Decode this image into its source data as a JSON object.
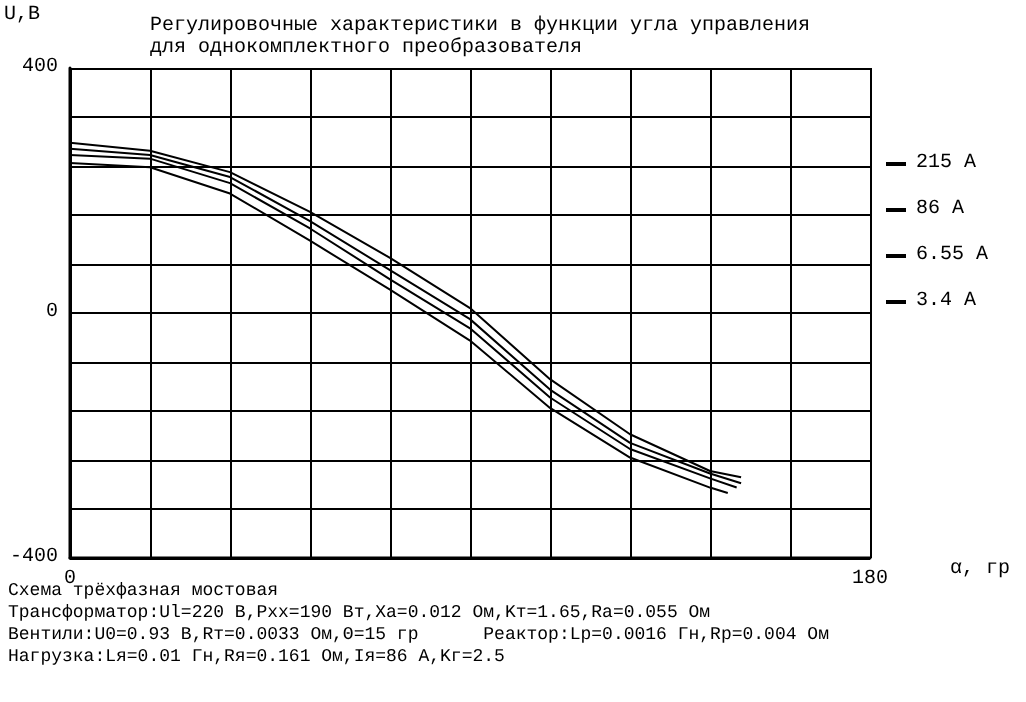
{
  "chart_data": {
    "type": "line",
    "title": "Регулировочные характеристики в функции угла управления\nдля однокомплектного преобразователя",
    "xlabel": "α, гр",
    "ylabel": "U,В",
    "xlim": [
      0,
      180
    ],
    "ylim": [
      -400,
      400
    ],
    "xticks": [
      0,
      {
        "value": 18,
        "label": null
      },
      {
        "value": 36,
        "label": null
      },
      {
        "value": 54,
        "label": null
      },
      {
        "value": 72,
        "label": null
      },
      {
        "value": 90,
        "label": null
      },
      {
        "value": 108,
        "label": null
      },
      {
        "value": 126,
        "label": null
      },
      {
        "value": 144,
        "label": null
      },
      {
        "value": 162,
        "label": null
      },
      180
    ],
    "yticks": [
      -400,
      {
        "value": -320,
        "label": null
      },
      {
        "value": -240,
        "label": null
      },
      {
        "value": -160,
        "label": null
      },
      {
        "value": -80,
        "label": null
      },
      0,
      {
        "value": 80,
        "label": null
      },
      {
        "value": 160,
        "label": null
      },
      {
        "value": 240,
        "label": null
      },
      {
        "value": 320,
        "label": null
      },
      400
    ],
    "grid": true,
    "legend": "right",
    "marker": "none",
    "line_style": "solid",
    "series": [
      {
        "name": "215 А",
        "color": "#000000",
        "x": [
          0,
          18,
          36,
          54,
          72,
          90,
          108,
          126,
          144,
          148
        ],
        "values": [
          245,
          238,
          195,
          118,
          38,
          -45,
          -155,
          -236,
          -285,
          -294
        ]
      },
      {
        "name": "86 А",
        "color": "#000000",
        "x": [
          0,
          18,
          36,
          54,
          72,
          90,
          108,
          126,
          144,
          150
        ],
        "values": [
          258,
          252,
          212,
          138,
          55,
          -25,
          -138,
          -222,
          -270,
          -285
        ]
      },
      {
        "name": "6.55 А",
        "color": "#000000",
        "x": [
          0,
          18,
          36,
          54,
          72,
          90,
          108,
          126,
          144,
          151
        ],
        "values": [
          268,
          258,
          222,
          150,
          70,
          -10,
          -125,
          -212,
          -262,
          -278
        ]
      },
      {
        "name": "3.4 А",
        "color": "#000000",
        "x": [
          0,
          18,
          36,
          54,
          72,
          90,
          108,
          126,
          144,
          151
        ],
        "values": [
          278,
          265,
          230,
          165,
          90,
          8,
          -108,
          -198,
          -258,
          -268
        ]
      }
    ],
    "annotations": [
      "Схема трёхфазная мостовая",
      "Трансформатор:Ul=220 В,Pxx=190 Вт,Xa=0.012 Ом,Kт=1.65,Ra=0.055 Ом",
      "Вентили:U0=0.93 В,Rт=0.0033 Ом,Θ=15 гр      Реактор:Lp=0.0016 Гн,Rp=0.004 Ом",
      "Нагрузка:Lя=0.01 Гн,Rя=0.161 Ом,Iя=86 А,Kг=2.5"
    ]
  }
}
